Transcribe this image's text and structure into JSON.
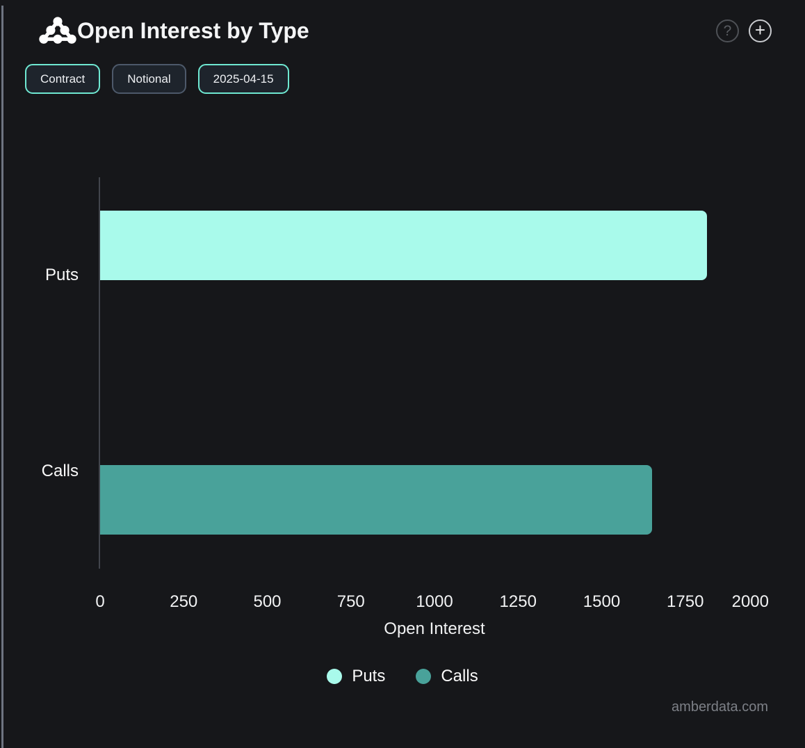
{
  "widget": {
    "title": "Open Interest by Type",
    "help_glyph": "?",
    "add_glyph": "+"
  },
  "toolbar": {
    "buttons": [
      {
        "label": "Contract",
        "active": true
      },
      {
        "label": "Notional",
        "active": false
      },
      {
        "label": "2025-04-15",
        "active": true
      }
    ]
  },
  "chart_data": {
    "type": "bar",
    "orientation": "horizontal",
    "title": "Open Interest by Type",
    "categories": [
      "Puts",
      "Calls"
    ],
    "values": [
      1815,
      1650
    ],
    "colors": [
      "#A9FAEB",
      "#49A29A"
    ],
    "xlabel": "Open Interest",
    "xlim": [
      0,
      2000
    ],
    "xticks": [
      0,
      250,
      500,
      750,
      1000,
      1250,
      1500,
      1750,
      2000
    ],
    "grid": false,
    "legend": {
      "position": "bottom",
      "items": [
        {
          "label": "Puts",
          "color": "#A9FAEB"
        },
        {
          "label": "Calls",
          "color": "#49A29A"
        }
      ]
    }
  },
  "footer": {
    "watermark": "amberdata.com"
  },
  "colors": {
    "background": "#16171A",
    "accent_teal": "#6FE8D2",
    "axis_line": "#42454C"
  }
}
